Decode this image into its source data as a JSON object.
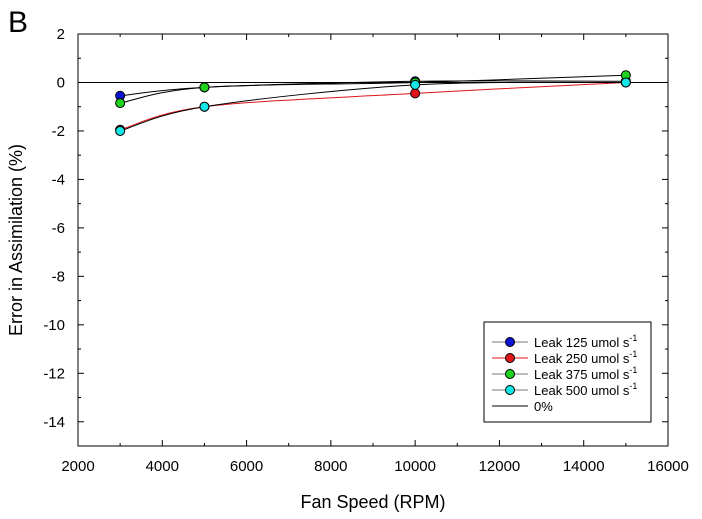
{
  "panel_label": "B",
  "chart_data": {
    "type": "line",
    "xlabel": "Fan Speed (RPM)",
    "ylabel": "Error in Assimilation (%)",
    "xlim": [
      2000,
      16000
    ],
    "ylim": [
      -15,
      2
    ],
    "x_ticks": [
      2000,
      4000,
      6000,
      8000,
      10000,
      12000,
      14000,
      16000
    ],
    "y_ticks": [
      2,
      0,
      -2,
      -4,
      -6,
      -8,
      -10,
      -12,
      -14
    ],
    "grid": false,
    "legend_position": "bottom-right",
    "reference_line": {
      "label": "0%",
      "y": 0,
      "color": "#000000"
    },
    "series": [
      {
        "name": "Leak 125 umol s",
        "superscript": "-1",
        "color": "#0a14d2",
        "line_color": "#000000",
        "x": [
          3000,
          5000,
          10000,
          15000
        ],
        "y": [
          -0.55,
          -0.2,
          0.05,
          0.05
        ]
      },
      {
        "name": "Leak 250 umol s",
        "superscript": "-1",
        "color": "#e0161b",
        "line_color": "#e0161b",
        "x": [
          3000,
          5000,
          10000,
          15000
        ],
        "y": [
          -1.95,
          -1.0,
          -0.45,
          0.0
        ]
      },
      {
        "name": "Leak 375 umol s",
        "superscript": "-1",
        "color": "#1ed21e",
        "line_color": "#000000",
        "x": [
          3000,
          5000,
          10000,
          15000
        ],
        "y": [
          -0.85,
          -0.2,
          0.0,
          0.3
        ]
      },
      {
        "name": "Leak 500 umol s",
        "superscript": "-1",
        "color": "#14e6e6",
        "line_color": "#000000",
        "x": [
          3000,
          5000,
          10000,
          15000
        ],
        "y": [
          -2.0,
          -1.0,
          -0.1,
          0.0
        ]
      }
    ]
  }
}
